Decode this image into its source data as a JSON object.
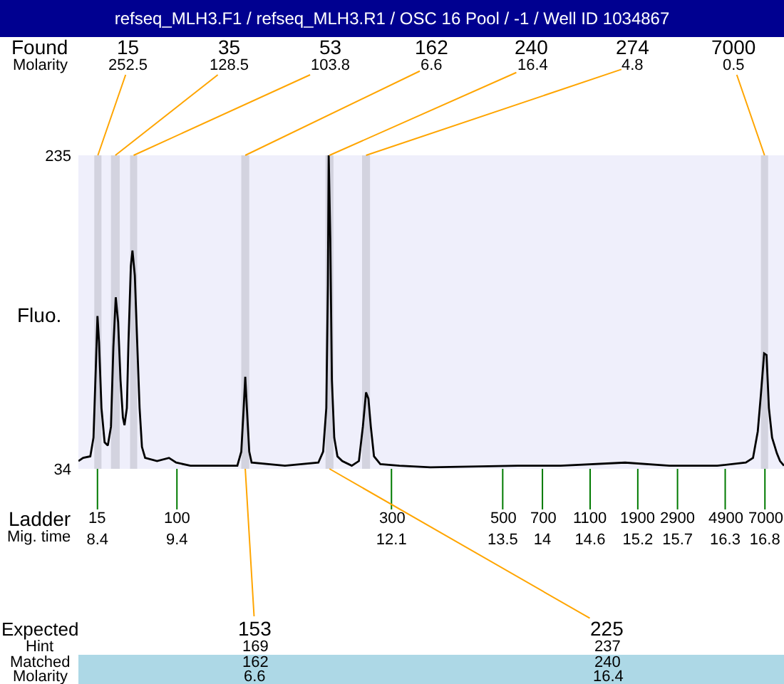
{
  "chart_data": {
    "type": "line",
    "title": "refseq_MLH3.F1 / refseq_MLH3.R1 / OSC 16 Pool / -1 / Well ID 1034867",
    "xlabel": "Mig. time",
    "ylabel": "Fluo.",
    "x": [
      8.16,
      8.22,
      8.31,
      8.35,
      8.38,
      8.4,
      8.42,
      8.45,
      8.49,
      8.53,
      8.57,
      8.6,
      8.63,
      8.66,
      8.69,
      8.72,
      8.74,
      8.77,
      8.79,
      8.82,
      8.84,
      8.87,
      8.9,
      8.93,
      8.96,
      9.0,
      9.15,
      9.3,
      9.39,
      9.57,
      9.87,
      10.16,
      10.21,
      10.24,
      10.26,
      10.28,
      10.31,
      10.34,
      10.76,
      11.18,
      11.24,
      11.28,
      11.3,
      11.31,
      11.33,
      11.35,
      11.38,
      11.42,
      11.48,
      11.6,
      11.69,
      11.74,
      11.78,
      11.81,
      11.84,
      11.88,
      11.96,
      12.2,
      12.59,
      13.69,
      14.23,
      15.04,
      15.6,
      16.2,
      16.56,
      16.65,
      16.71,
      16.75,
      16.79,
      16.82,
      16.85,
      16.89,
      16.95,
      16.99,
      17.04
    ],
    "series": [
      {
        "color": "#000000",
        "values": [
          39,
          41,
          42,
          54,
          100,
          132,
          115,
          73,
          51,
          49,
          61,
          112,
          144,
          128,
          91,
          67,
          62,
          73,
          115,
          164,
          174,
          158,
          115,
          73,
          48,
          41,
          39,
          41,
          38,
          36,
          36,
          36,
          45,
          73,
          93,
          73,
          45,
          38,
          36,
          38,
          45,
          73,
          152,
          235,
          182,
          91,
          54,
          42,
          39,
          36,
          39,
          61,
          83,
          79,
          61,
          42,
          37,
          36,
          35,
          36,
          36,
          38,
          36,
          36,
          38,
          41,
          58,
          82,
          108,
          107,
          73,
          54,
          44,
          39,
          36
        ]
      }
    ],
    "xlim": [
      8.16,
      17.04
    ],
    "ylim": [
      34,
      235
    ],
    "xticks": [
      8.4,
      9.4,
      12.1,
      13.5,
      14,
      14.6,
      15.2,
      15.7,
      16.3,
      16.8
    ],
    "yticks": [
      34,
      235
    ],
    "bands": [
      {
        "axis": "x",
        "from": 8.36,
        "to": 8.45,
        "label": "15\n252.5",
        "color": "#d3d3df"
      },
      {
        "axis": "x",
        "from": 8.57,
        "to": 8.68,
        "label": "35\n128.5",
        "color": "#d3d3df"
      },
      {
        "axis": "x",
        "from": 8.81,
        "to": 8.9,
        "label": "53\n103.8",
        "color": "#d3d3df"
      },
      {
        "axis": "x",
        "from": 10.21,
        "to": 10.31,
        "label": "162\n6.6",
        "color": "#d3d3df"
      },
      {
        "axis": "x",
        "from": 11.27,
        "to": 11.37,
        "label": "240\n16.4",
        "color": "#d3d3df"
      },
      {
        "axis": "x",
        "from": 11.73,
        "to": 11.83,
        "label": "274\n4.8",
        "color": "#d3d3df"
      },
      {
        "axis": "x",
        "from": 16.75,
        "to": 16.84,
        "label": "7000\n0.5",
        "color": "#d3d3df"
      }
    ],
    "annotations": [
      "Found\nMolarity",
      "Ladder",
      "Expected\nHint\nMatched\nMolarity",
      {
        "text": "15",
        "x": 8.4,
        "y": 34
      },
      {
        "text": "100",
        "x": 9.4,
        "y": 34
      },
      {
        "text": "300",
        "x": 12.1,
        "y": 34
      },
      {
        "text": "500",
        "x": 13.5,
        "y": 34
      },
      {
        "text": "700",
        "x": 14,
        "y": 34
      },
      {
        "text": "1100",
        "x": 14.6,
        "y": 34
      },
      {
        "text": "1900",
        "x": 15.2,
        "y": 34
      },
      {
        "text": "2900",
        "x": 15.7,
        "y": 34
      },
      {
        "text": "4900",
        "x": 16.3,
        "y": 34
      },
      {
        "text": "7000",
        "x": 16.8,
        "y": 34
      },
      {
        "text": "153\n169\n162\n6.6",
        "x": 10.26,
        "y": 34
      },
      {
        "text": "225\n237\n240\n16.4",
        "x": 11.32,
        "y": 34
      }
    ]
  }
}
